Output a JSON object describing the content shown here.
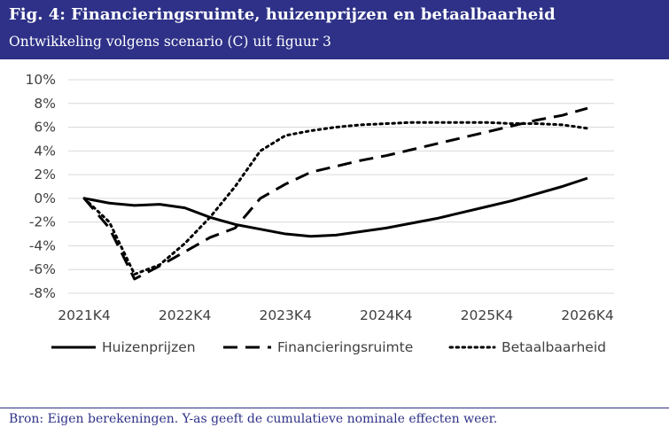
{
  "header": {
    "title": "Fig. 4: Financieringsruimte, huizenprijzen en betaalbaarheid",
    "subtitle": "Ontwikkeling volgens scenario (C) uit figuur 3"
  },
  "source": "Bron: Eigen berekeningen. Y-as geeft de cumulatieve nominale effecten weer.",
  "colors": {
    "header_bg": "#2e3187",
    "series": "#000000",
    "gridline": "#d9d9d9"
  },
  "chart_data": {
    "type": "line",
    "x_tick_labels": [
      "2021K4",
      "2022K4",
      "2023K4",
      "2024K4",
      "2025K4",
      "2026K4"
    ],
    "y_tick_labels": [
      "10%",
      "8%",
      "6%",
      "4%",
      "2%",
      "0%",
      "-2%",
      "-4%",
      "-6%",
      "-8%"
    ],
    "ylim": [
      -8,
      10
    ],
    "y_unit": "%",
    "grid": "horizontal",
    "legend_position": "bottom",
    "x_quarters_from_2021K4": [
      0,
      1,
      2,
      3,
      4,
      5,
      6,
      7,
      8,
      9,
      10,
      11,
      12,
      13,
      14,
      15,
      16,
      17,
      18,
      19,
      20
    ],
    "series": [
      {
        "name": "Huizenprijzen",
        "style": "solid",
        "values": [
          0,
          -0.4,
          -0.6,
          -0.5,
          -0.8,
          -1.6,
          -2.2,
          -2.6,
          -3.0,
          -3.2,
          -3.1,
          -2.8,
          -2.5,
          -2.1,
          -1.7,
          -1.2,
          -0.7,
          -0.2,
          0.4,
          1.0,
          1.7
        ]
      },
      {
        "name": "Financieringsruimte",
        "style": "dashed",
        "values": [
          0,
          -2.5,
          -6.8,
          -5.7,
          -4.5,
          -3.3,
          -2.5,
          0,
          1.2,
          2.2,
          2.7,
          3.2,
          3.6,
          4.1,
          4.6,
          5.1,
          5.6,
          6.1,
          6.6,
          7.0,
          7.6
        ]
      },
      {
        "name": "Betaalbaarheid",
        "style": "dotted",
        "values": [
          0,
          -2.0,
          -6.4,
          -5.6,
          -3.8,
          -1.6,
          1.0,
          4.0,
          5.3,
          5.7,
          6.0,
          6.2,
          6.3,
          6.4,
          6.4,
          6.4,
          6.4,
          6.3,
          6.3,
          6.2,
          5.9
        ]
      }
    ]
  }
}
